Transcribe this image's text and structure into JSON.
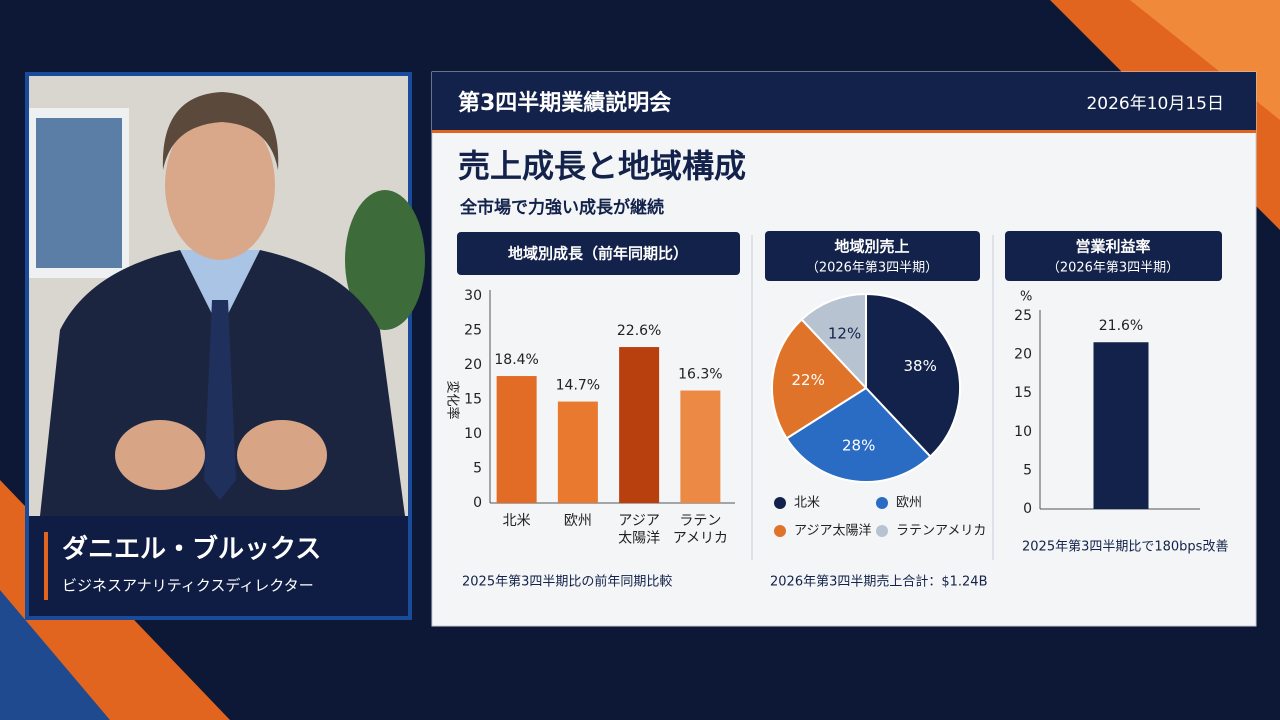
{
  "speaker": {
    "name": "ダニエル・ブルックス",
    "role": "ビジネスアナリティクスディレクター"
  },
  "slide": {
    "header_title": "第3四半期業績説明会",
    "date": "2026年10月15日",
    "title": "売上成長と地域構成",
    "subtitle": "全市場で力強い成長が継続",
    "charts": [
      {
        "type": "bar",
        "title": "地域別成長（前年同期比）",
        "categories": [
          "北米",
          "欧州",
          "アジア\n太陽洋",
          "ラテン\nアメリカ"
        ],
        "values": [
          18.4,
          14.7,
          22.6,
          16.3
        ],
        "value_labels": [
          "18.4%",
          "14.7%",
          "22.6%",
          "16.3%"
        ],
        "colors": [
          "#e26b25",
          "#e8792f",
          "#b8400e",
          "#ec8a45"
        ],
        "ylabel": "変化率",
        "ylim": [
          0,
          30
        ],
        "yticks": [
          0,
          5,
          10,
          15,
          20,
          25,
          30
        ],
        "footnote": "2025年第3四半期比の前年同期比較"
      },
      {
        "type": "pie",
        "title": "地域別売上",
        "subtitle": "（2026年第3四半期）",
        "categories": [
          "北米",
          "欧州",
          "アジア太陽洋",
          "ラテンアメリカ"
        ],
        "values": [
          38,
          28,
          22,
          12
        ],
        "value_labels": [
          "38%",
          "28%",
          "22%",
          "12%"
        ],
        "colors": [
          "#13224a",
          "#2a6bc4",
          "#e0732a",
          "#b8c3d2"
        ],
        "footnote": "2026年第3四半期売上合計：$1.24B"
      },
      {
        "type": "bar",
        "title": "営業利益率",
        "subtitle": "（2026年第3四半期）",
        "categories": [
          null
        ],
        "values": [
          21.6
        ],
        "value_labels": [
          "21.6%"
        ],
        "colors": [
          "#13224a"
        ],
        "ylabel": "%",
        "ylim": [
          0,
          25
        ],
        "yticks": [
          0,
          5,
          10,
          15,
          20,
          25
        ],
        "footnote": "2025年第3四半期比で180bps改善"
      }
    ]
  }
}
